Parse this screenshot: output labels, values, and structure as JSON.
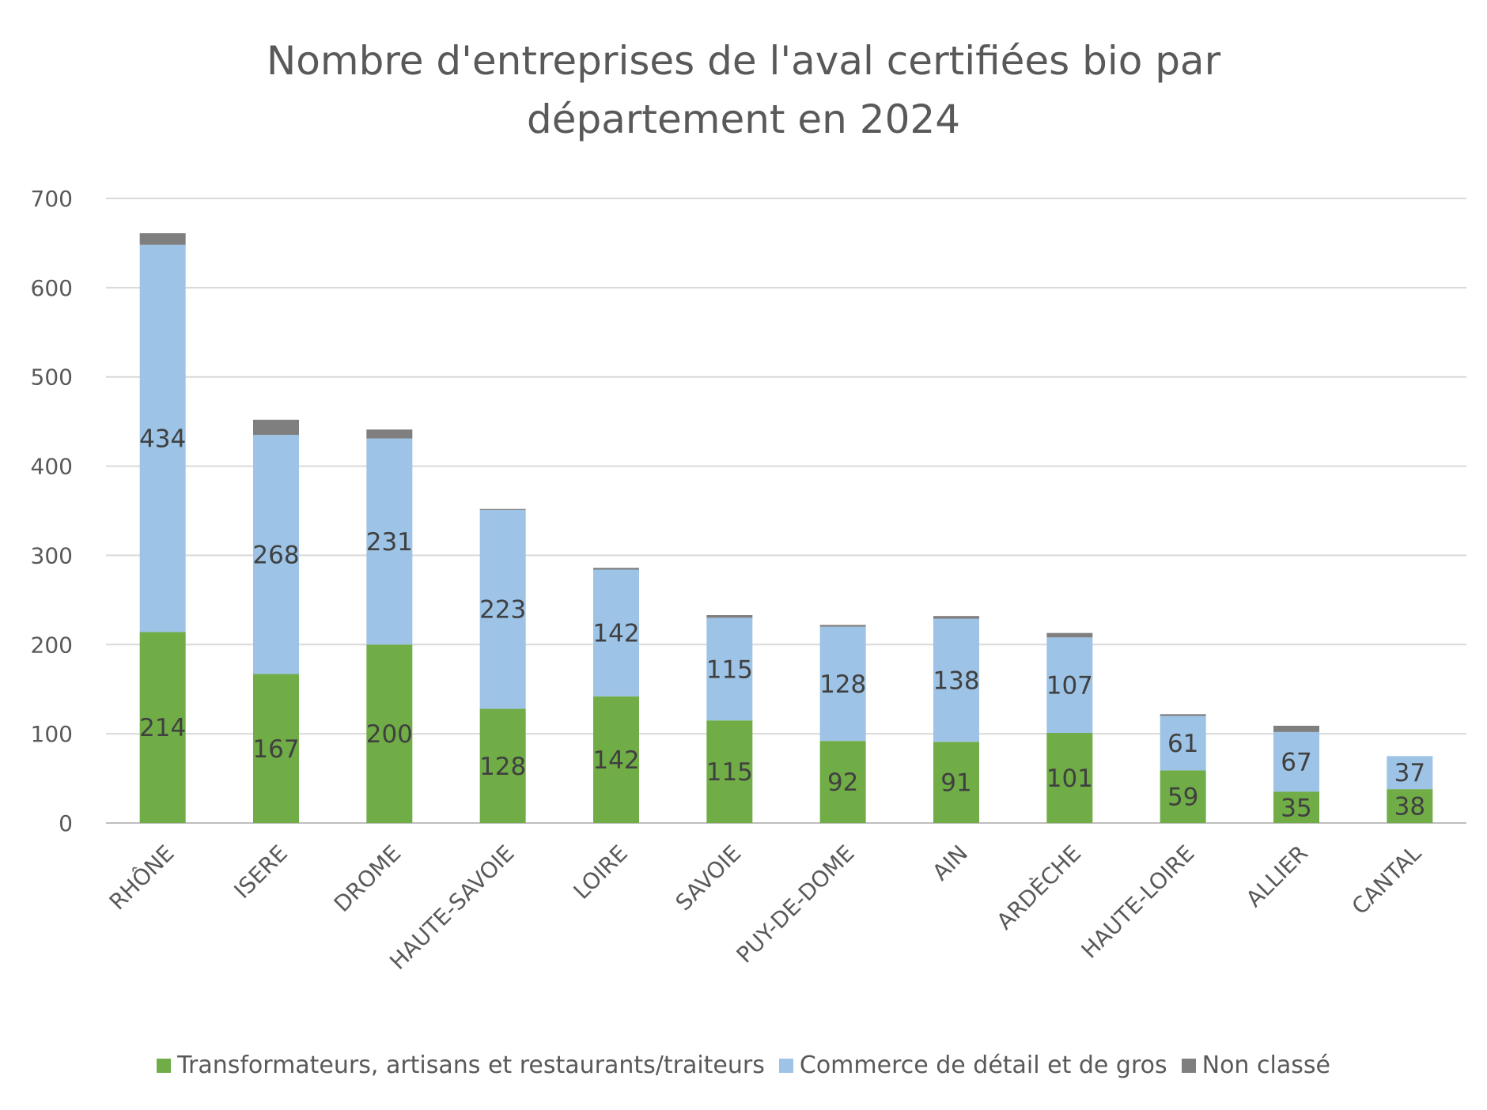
{
  "chart_data": {
    "type": "bar",
    "stacked": true,
    "title_lines": [
      "Nombre d'entreprises de l'aval certifiées bio par",
      "département en 2024"
    ],
    "categories": [
      "RHÔNE",
      "ISERE",
      "DROME",
      "HAUTE-SAVOIE",
      "LOIRE",
      "SAVOIE",
      "PUY-DE-DOME",
      "AIN",
      "ARDÈCHE",
      "HAUTE-LOIRE",
      "ALLIER",
      "CANTAL"
    ],
    "series": [
      {
        "name": "Transformateurs, artisans et restaurants/traiteurs",
        "color": "#70AD47",
        "values": [
          214,
          167,
          200,
          128,
          142,
          115,
          92,
          91,
          101,
          59,
          35,
          38
        ],
        "labels": [
          "214",
          "167",
          "200",
          "128",
          "142",
          "115",
          "92",
          "91",
          "101",
          "59",
          "35",
          "38"
        ]
      },
      {
        "name": "Commerce de détail et de gros",
        "color": "#9DC3E6",
        "values": [
          434,
          268,
          231,
          223,
          142,
          115,
          128,
          138,
          107,
          61,
          67,
          37
        ],
        "labels": [
          "434",
          "268",
          "231",
          "223",
          "142",
          "115",
          "128",
          "138",
          "107",
          "61",
          "67",
          "37"
        ]
      },
      {
        "name": "Non classé",
        "color": "#7F7F7F",
        "values": [
          13,
          17,
          10,
          1,
          2,
          3,
          2,
          3,
          5,
          2,
          7,
          0
        ]
      }
    ],
    "ylim": [
      0,
      700
    ],
    "yticks": [
      "0",
      "100",
      "200",
      "300",
      "400",
      "500",
      "600",
      "700"
    ],
    "grid": true,
    "legend_position": "bottom"
  }
}
